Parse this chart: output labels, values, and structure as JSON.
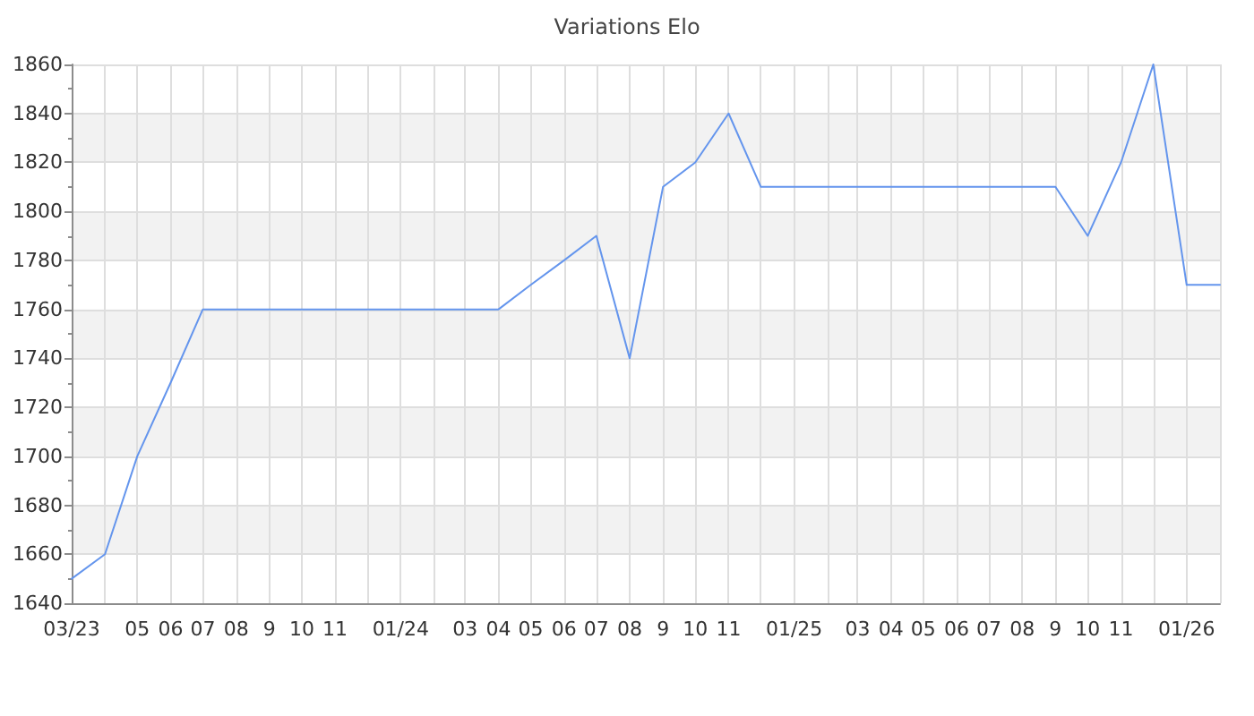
{
  "chart_data": {
    "type": "line",
    "title": "Variations Elo",
    "x": [
      "2023-03",
      "2023-04",
      "2023-05",
      "2023-06",
      "2023-07",
      "2023-08",
      "2023-09",
      "2023-10",
      "2023-11",
      "2023-12",
      "2024-01",
      "2024-02",
      "2024-03",
      "2024-04",
      "2024-05",
      "2024-06",
      "2024-07",
      "2024-08",
      "2024-09",
      "2024-10",
      "2024-11",
      "2024-12",
      "2025-01",
      "2025-02",
      "2025-03",
      "2025-04",
      "2025-05",
      "2025-06",
      "2025-07",
      "2025-08",
      "2025-09",
      "2025-10",
      "2025-11",
      "2025-12",
      "2026-01",
      "2026-02"
    ],
    "values": [
      1650,
      1660,
      1700,
      1730,
      1760,
      1760,
      1760,
      1760,
      1760,
      1760,
      1760,
      1760,
      1760,
      1760,
      1770,
      1780,
      1790,
      1740,
      1810,
      1820,
      1840,
      1810,
      1810,
      1810,
      1810,
      1810,
      1810,
      1810,
      1810,
      1810,
      1810,
      1790,
      1820,
      1860,
      1770,
      1770
    ],
    "color": "#6495ed",
    "xlim": [
      "2023-03",
      "2026-02"
    ],
    "xticks": [
      {
        "value": "2023-03",
        "label": "03/23"
      },
      {
        "value": "2023-04",
        "label": null
      },
      {
        "value": "2023-05",
        "label": "05"
      },
      {
        "value": "2023-06",
        "label": "06"
      },
      {
        "value": "2023-07",
        "label": "07"
      },
      {
        "value": "2023-08",
        "label": "08"
      },
      {
        "value": "2023-09",
        "label": "9"
      },
      {
        "value": "2023-10",
        "label": "10"
      },
      {
        "value": "2023-11",
        "label": "11"
      },
      {
        "value": "2023-12",
        "label": null
      },
      {
        "value": "2024-01",
        "label": "01/24"
      },
      {
        "value": "2024-02",
        "label": null
      },
      {
        "value": "2024-03",
        "label": "03"
      },
      {
        "value": "2024-04",
        "label": "04"
      },
      {
        "value": "2024-05",
        "label": "05"
      },
      {
        "value": "2024-06",
        "label": "06"
      },
      {
        "value": "2024-07",
        "label": "07"
      },
      {
        "value": "2024-08",
        "label": "08"
      },
      {
        "value": "2024-09",
        "label": "9"
      },
      {
        "value": "2024-10",
        "label": "10"
      },
      {
        "value": "2024-11",
        "label": "11"
      },
      {
        "value": "2024-12",
        "label": null
      },
      {
        "value": "2025-01",
        "label": "01/25"
      },
      {
        "value": "2025-02",
        "label": null
      },
      {
        "value": "2025-03",
        "label": "03"
      },
      {
        "value": "2025-04",
        "label": "04"
      },
      {
        "value": "2025-05",
        "label": "05"
      },
      {
        "value": "2025-06",
        "label": "06"
      },
      {
        "value": "2025-07",
        "label": "07"
      },
      {
        "value": "2025-08",
        "label": "08"
      },
      {
        "value": "2025-09",
        "label": "9"
      },
      {
        "value": "2025-10",
        "label": "10"
      },
      {
        "value": "2025-11",
        "label": "11"
      },
      {
        "value": "2025-12",
        "label": null
      },
      {
        "value": "2026-01",
        "label": "01/26"
      },
      {
        "value": "2026-02",
        "label": null
      }
    ],
    "ylim": [
      1640,
      1860
    ],
    "yticks": [
      1640,
      1660,
      1680,
      1700,
      1720,
      1740,
      1760,
      1780,
      1800,
      1820,
      1840,
      1860
    ],
    "grid": true,
    "marker": "none",
    "line_style": "solid"
  }
}
